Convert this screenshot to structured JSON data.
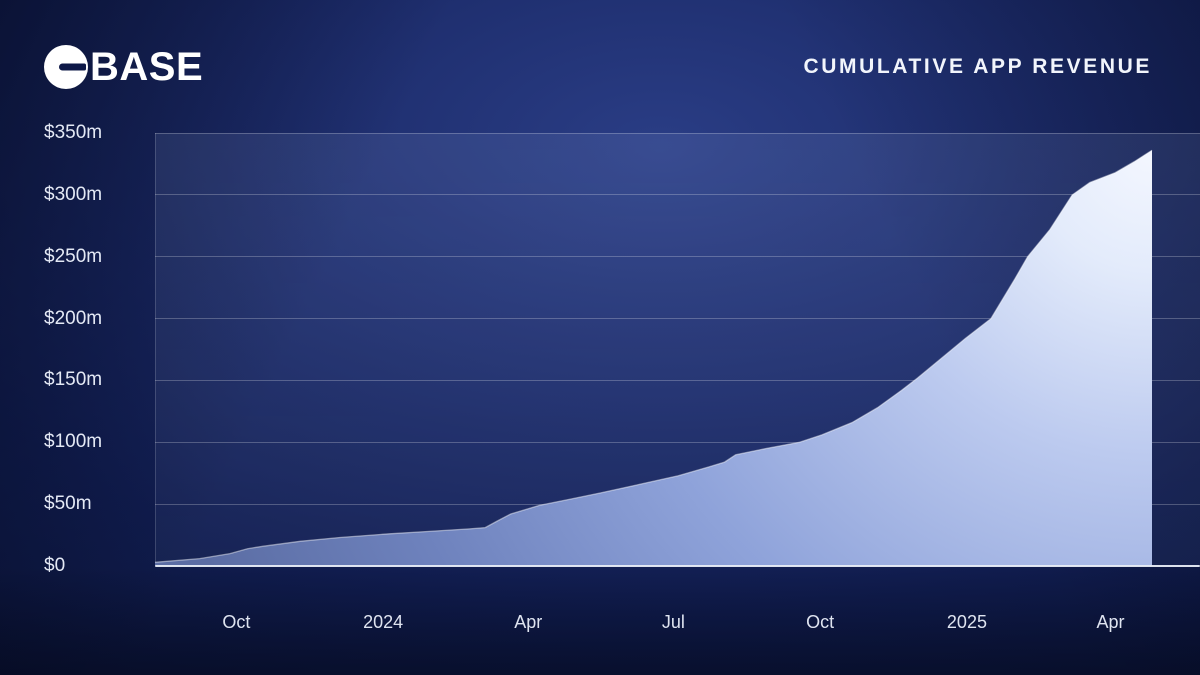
{
  "header": {
    "brand": "BASE",
    "logo_icon": "base-circle-dash-mark"
  },
  "chart_data": {
    "type": "area",
    "title": "CUMULATIVE APP REVENUE",
    "series_name": "Cumulative app revenue",
    "unit": "USD millions",
    "grid": true,
    "legend": "none",
    "ylim": [
      0,
      350
    ],
    "x_domain": [
      "2023-08-11",
      "2025-04-27"
    ],
    "y_ticks": [
      {
        "label": "$0",
        "value": 0
      },
      {
        "label": "$50m",
        "value": 50
      },
      {
        "label": "$100m",
        "value": 100
      },
      {
        "label": "$150m",
        "value": 150
      },
      {
        "label": "$200m",
        "value": 200
      },
      {
        "label": "$250m",
        "value": 250
      },
      {
        "label": "$300m",
        "value": 300
      },
      {
        "label": "$350m",
        "value": 350
      }
    ],
    "x_ticks": [
      {
        "label": "Oct",
        "date": "2023-10-01"
      },
      {
        "label": "2024",
        "date": "2024-01-01"
      },
      {
        "label": "Apr",
        "date": "2024-04-01"
      },
      {
        "label": "Jul",
        "date": "2024-07-01"
      },
      {
        "label": "Oct",
        "date": "2024-10-01"
      },
      {
        "label": "2025",
        "date": "2025-01-01"
      },
      {
        "label": "Apr",
        "date": "2025-04-01"
      }
    ],
    "points": [
      [
        "2023-08-11",
        3
      ],
      [
        "2023-09-08",
        6
      ],
      [
        "2023-09-27",
        10
      ],
      [
        "2023-10-08",
        14
      ],
      [
        "2023-10-18",
        16
      ],
      [
        "2023-11-10",
        20
      ],
      [
        "2023-12-05",
        23
      ],
      [
        "2024-01-05",
        26
      ],
      [
        "2024-01-30",
        28
      ],
      [
        "2024-02-24",
        30
      ],
      [
        "2024-03-05",
        31
      ],
      [
        "2024-03-12",
        36
      ],
      [
        "2024-03-21",
        42
      ],
      [
        "2024-04-08",
        49
      ],
      [
        "2024-04-27",
        54
      ],
      [
        "2024-05-16",
        59
      ],
      [
        "2024-06-10",
        66
      ],
      [
        "2024-07-04",
        73
      ],
      [
        "2024-07-23",
        80
      ],
      [
        "2024-08-02",
        84
      ],
      [
        "2024-08-09",
        90
      ],
      [
        "2024-08-28",
        95
      ],
      [
        "2024-09-18",
        100
      ],
      [
        "2024-10-02",
        106
      ],
      [
        "2024-10-21",
        116
      ],
      [
        "2024-11-06",
        128
      ],
      [
        "2024-11-21",
        142
      ],
      [
        "2024-12-01",
        152
      ],
      [
        "2024-12-16",
        168
      ],
      [
        "2024-12-31",
        184
      ],
      [
        "2025-01-16",
        200
      ],
      [
        "2025-01-31",
        232
      ],
      [
        "2025-02-08",
        250
      ],
      [
        "2025-02-22",
        272
      ],
      [
        "2025-03-08",
        300
      ],
      [
        "2025-03-19",
        310
      ],
      [
        "2025-04-04",
        318
      ],
      [
        "2025-04-16",
        327
      ],
      [
        "2025-04-27",
        336
      ]
    ],
    "area_gradient": [
      [
        "0%",
        "#f4f7ff"
      ],
      [
        "12%",
        "#e3ebfb"
      ],
      [
        "30%",
        "#bccaef"
      ],
      [
        "55%",
        "#8fa3da"
      ],
      [
        "80%",
        "#6e82bd"
      ],
      [
        "100%",
        "#5b6da4"
      ]
    ]
  },
  "colors": {
    "background_center": "#2a3d85",
    "background_edge": "#0a1233",
    "gridline": "rgba(255,255,255,0.24)",
    "baseline": "#e8edf7",
    "text": "#e9edf7",
    "logo_background": "#ffffff",
    "logo_dash": "#0d1847",
    "area_stroke": "rgba(255,255,255,0.45)"
  }
}
